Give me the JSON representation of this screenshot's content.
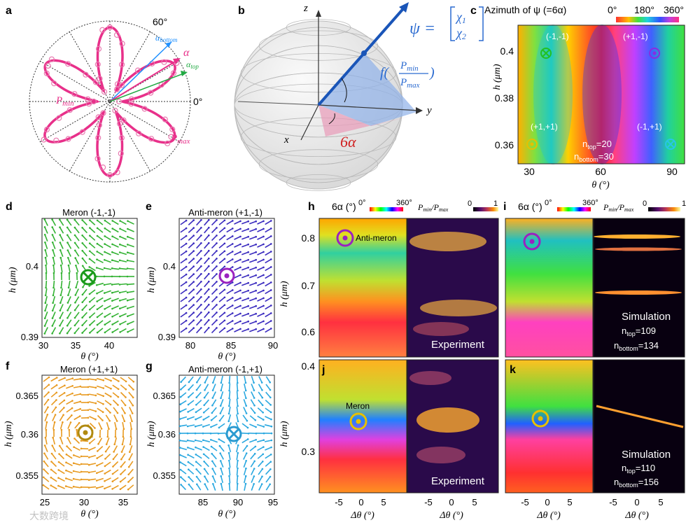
{
  "panel_letters": {
    "a": "a",
    "b": "b",
    "c": "c",
    "d": "d",
    "e": "e",
    "f": "f",
    "g": "g",
    "h": "h",
    "i": "i",
    "j": "j",
    "k": "k"
  },
  "panel_a": {
    "angle_60": "60°",
    "angle_0": "0°",
    "label_alpha": "α",
    "label_alpha_bottom": "α",
    "label_alpha_bottom_sub": "bottom",
    "label_alpha_top": "α",
    "label_alpha_top_sub": "top",
    "label_pmin": "P",
    "label_pmin_sub": "min",
    "label_pmax": "P",
    "label_pmax_sub": "max"
  },
  "panel_b": {
    "axis_z": "z",
    "axis_y": "y",
    "axis_x": "x",
    "psi_label": "ψ =",
    "chi1": "χ",
    "chi1_sub": "1",
    "chi2": "χ",
    "chi2_sub": "2",
    "f_label": "f(",
    "f_num": "P",
    "f_num_sub": "min",
    "f_den": "P",
    "f_den_sub": "max",
    "f_close": ")",
    "six_alpha": "6α"
  },
  "panel_c": {
    "title": "Azimuth of ψ (=6α)",
    "cbar_min": "0°",
    "cbar_mid": "180°",
    "cbar_max": "360°",
    "ylabel": "h (μm)",
    "xlabel": "θ (°)",
    "yticks": [
      "0.4",
      "0.38",
      "0.36"
    ],
    "xticks": [
      "30",
      "60",
      "90"
    ],
    "defects": [
      {
        "label": "(-1,-1)",
        "color": "#22c022",
        "type": "otimes"
      },
      {
        "label": "(+1,-1)",
        "color": "#8a2be2",
        "type": "odot"
      },
      {
        "label": "(+1,+1)",
        "color": "#e6c000",
        "type": "odot"
      },
      {
        "label": "(-1,+1)",
        "color": "#29c5e6",
        "type": "otimes"
      }
    ],
    "ntop": "n",
    "ntop_sub": "top",
    "ntop_val": "=20",
    "nbottom": "n",
    "nbottom_sub": "bottom",
    "nbottom_val": "=30"
  },
  "panel_d": {
    "title": "Meron (-1,-1)",
    "ylabel": "h (μm)",
    "xlabel": "θ (°)",
    "yticks": [
      "0.4",
      "0.39"
    ],
    "xticks": [
      "30",
      "35",
      "40"
    ],
    "color": "#33b233"
  },
  "panel_e": {
    "title": "Anti-meron (+1,-1)",
    "ylabel": "h (μm)",
    "xlabel": "θ (°)",
    "yticks": [
      "0.4",
      "0.39"
    ],
    "xticks": [
      "80",
      "85",
      "90"
    ],
    "color": "#3a2bbf"
  },
  "panel_f": {
    "title": "Meron (+1,+1)",
    "ylabel": "h (μm)",
    "xlabel": "θ (°)",
    "yticks": [
      "0.365",
      "0.36",
      "0.355"
    ],
    "xticks": [
      "25",
      "30",
      "35"
    ],
    "color": "#e89a20"
  },
  "panel_g": {
    "title": "Anti-meron (-1,+1)",
    "ylabel": "h (μm)",
    "xlabel": "θ (°)",
    "yticks": [
      "0.365",
      "0.36",
      "0.355"
    ],
    "xticks": [
      "85",
      "90",
      "95"
    ],
    "color": "#2aa8e0"
  },
  "panel_h": {
    "cbar1_label": "6α (°)",
    "cbar1_min": "0°",
    "cbar1_max": "360°",
    "cbar2_label": "P",
    "cbar2_label_num_sub": "min",
    "cbar2_label_slash": "/P",
    "cbar2_label_den_sub": "max",
    "cbar2_min": "0",
    "cbar2_max": "1",
    "ylabel": "h (μm)",
    "yticks": [
      "0.8",
      "0.7",
      "0.6"
    ],
    "annotation": "Anti-meron",
    "footer": "Experiment"
  },
  "panel_i": {
    "cbar1_label": "6α (°)",
    "cbar1_min": "0°",
    "cbar1_max": "360°",
    "cbar2_label": "P",
    "cbar2_label_num_sub": "min",
    "cbar2_label_slash": "/P",
    "cbar2_label_den_sub": "max",
    "cbar2_min": "0",
    "cbar2_max": "1",
    "footer": "Simulation",
    "ntop": "n",
    "ntop_sub": "top",
    "ntop_val": "=109",
    "nbottom": "n",
    "nbottom_sub": "bottom",
    "nbottom_val": "=134"
  },
  "panel_j": {
    "ylabel": "h (μm)",
    "yticks": [
      "0.4",
      "0.3"
    ],
    "annotation": "Meron",
    "footer": "Experiment",
    "xlabel": "Δθ (°)",
    "xticks": [
      "-5",
      "0",
      "5"
    ]
  },
  "panel_k": {
    "footer": "Simulation",
    "ntop": "n",
    "ntop_sub": "top",
    "ntop_val": "=110",
    "nbottom": "n",
    "nbottom_sub": "bottom",
    "nbottom_val": "=156",
    "xlabel": "Δθ (°)",
    "xticks": [
      "-5",
      "0",
      "5"
    ]
  },
  "watermark": "大数跨境"
}
